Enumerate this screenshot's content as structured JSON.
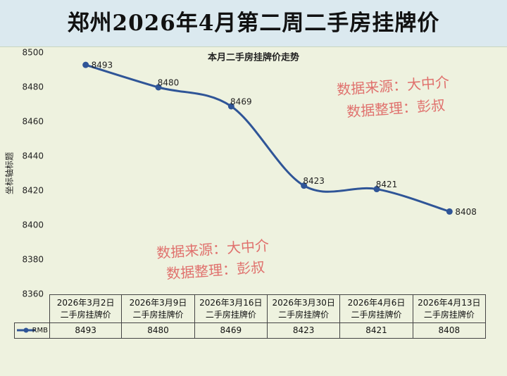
{
  "chart_data": {
    "type": "line",
    "title": "郑州2026年4月第二周二手房挂牌价",
    "subtitle": "本月二手房挂牌价走势",
    "y_label": "坐标轴标题",
    "categories": [
      "2026年3月2日二手房挂牌价",
      "2026年3月9日二手房挂牌价",
      "2026年3月16日二手房挂牌价",
      "2026年3月30日二手房挂牌价",
      "2026年4月6日二手房挂牌价",
      "2026年4月13日二手房挂牌价"
    ],
    "series": [
      {
        "name": "RMB",
        "color": "#2f5597",
        "values": [
          8493,
          8480,
          8469,
          8423,
          8421,
          8408
        ]
      }
    ],
    "ylim": [
      8360,
      8500
    ],
    "yticks": [
      8360,
      8380,
      8400,
      8420,
      8440,
      8460,
      8480,
      8500
    ],
    "grid": false,
    "annotations": [
      "数据来源：大中介",
      "数据整理：彭叔",
      "数据来源：大中介",
      "数据整理：彭叔"
    ]
  }
}
